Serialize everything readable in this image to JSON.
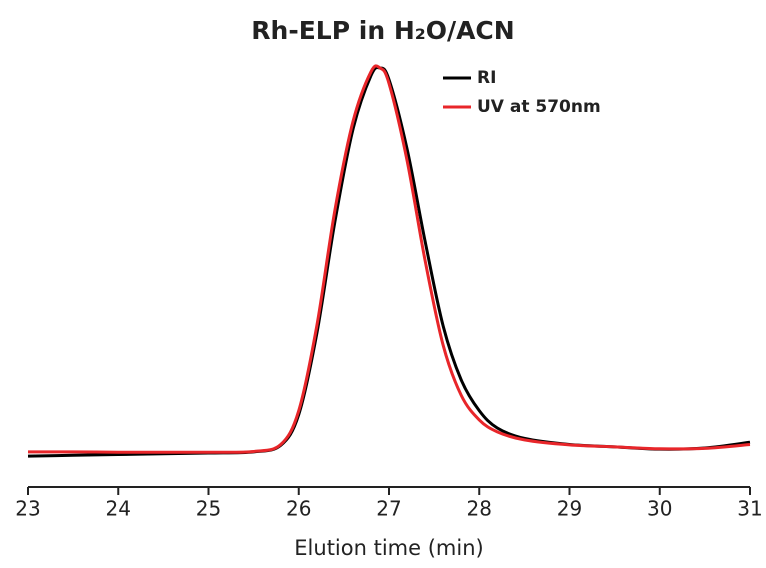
{
  "chart_data": {
    "type": "line",
    "title": "Rh-ELP in H₂O/ACN",
    "x_label": "Elution time (min)",
    "x": [
      23,
      23.5,
      24,
      24.5,
      25,
      25.5,
      25.8,
      26,
      26.2,
      26.4,
      26.6,
      26.8,
      26.9,
      27,
      27.2,
      27.4,
      27.6,
      27.8,
      28,
      28.2,
      28.5,
      29,
      29.5,
      30,
      30.5,
      31
    ],
    "series": [
      {
        "name": "RI",
        "color": "#000000",
        "values": [
          -0.008,
          -0.006,
          -0.004,
          -0.002,
          0,
          0.003,
          0.02,
          0.1,
          0.31,
          0.6,
          0.84,
          0.98,
          1.0,
          0.97,
          0.79,
          0.55,
          0.33,
          0.19,
          0.11,
          0.065,
          0.038,
          0.022,
          0.016,
          0.01,
          0.013,
          0.028
        ]
      },
      {
        "name": "UV at 570nm",
        "color": "#e8262a",
        "values": [
          0.003,
          0.003,
          0.002,
          0.002,
          0.002,
          0.004,
          0.022,
          0.11,
          0.33,
          0.63,
          0.86,
          0.99,
          1.0,
          0.96,
          0.76,
          0.5,
          0.28,
          0.15,
          0.086,
          0.055,
          0.034,
          0.021,
          0.016,
          0.011,
          0.012,
          0.022
        ]
      }
    ],
    "xlim": [
      23,
      31
    ],
    "xticks": [
      23,
      24,
      25,
      26,
      27,
      28,
      29,
      30,
      31
    ],
    "legend": "upper right"
  }
}
